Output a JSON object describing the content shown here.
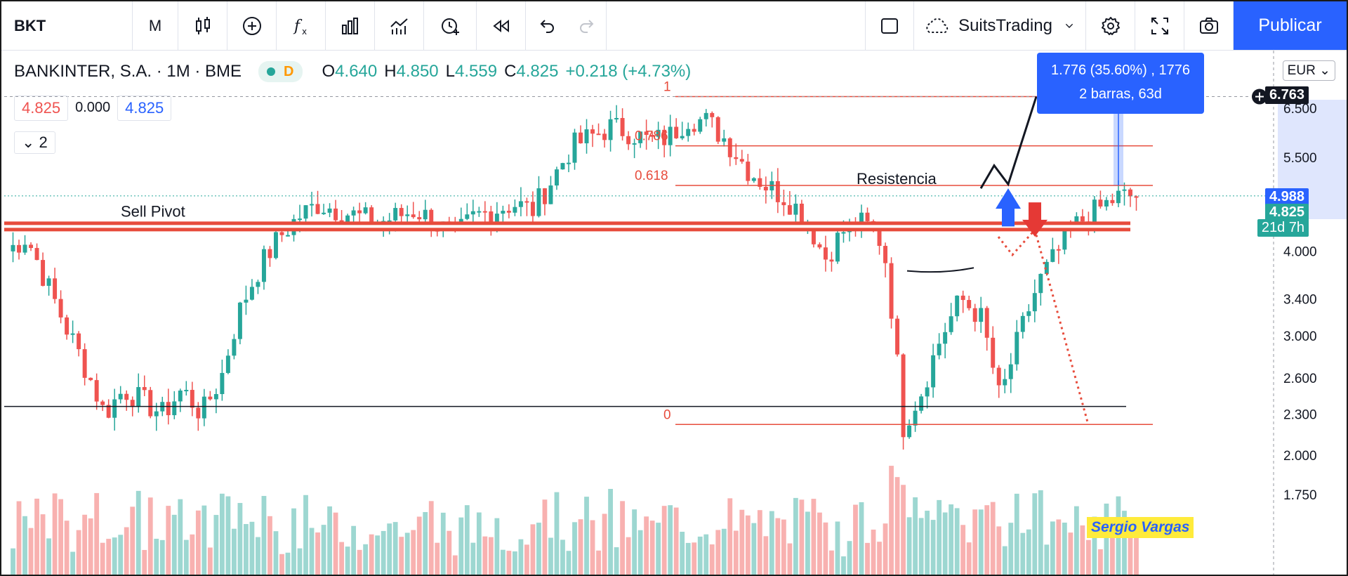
{
  "toolbar": {
    "symbol": "BKT",
    "interval": "M",
    "brand": "SuitsTrading",
    "publish_label": "Publicar",
    "icons": [
      "candles-icon",
      "add-icon",
      "fx-icon",
      "bars-icon",
      "indicator-icon",
      "alert-icon",
      "replay-icon",
      "undo-icon",
      "redo-icon",
      "layout-icon",
      "cloud-icon",
      "gear-icon",
      "fullscreen-icon",
      "camera-icon"
    ]
  },
  "legend": {
    "title": "BANKINTER, S.A. · 1M · BME",
    "badge": "D",
    "o_label": "O",
    "o": "4.640",
    "h_label": "H",
    "h": "4.850",
    "l_label": "L",
    "l": "4.559",
    "c_label": "C",
    "c": "4.825",
    "change": "+0.218 (+4.73%)",
    "box1": "4.825",
    "box2": "0.000",
    "box3": "4.825",
    "collapse": "2"
  },
  "price_tags": {
    "currency": "EUR",
    "crosshair": "6.763",
    "target": "4.988",
    "last": "4.825",
    "countdown": "21d 7h"
  },
  "info": {
    "line1": "1.776 (35.60%) , 1776",
    "line2": "2 barras, 63d"
  },
  "author": "Sergio Vargas",
  "colors": {
    "up": "#26a69a",
    "down": "#ef5350",
    "accent": "#2962ff",
    "level": "#e74c3c"
  },
  "chart_data": {
    "type": "candlestick",
    "title": "BANKINTER, S.A. · 1M · BME",
    "y_scale": "log",
    "ylim": [
      1.6,
      7.6
    ],
    "y_ticks": [
      1.75,
      2.0,
      2.3,
      2.6,
      3.0,
      3.4,
      4.0,
      5.5,
      6.5
    ],
    "y_tick_labels": [
      "1.750",
      "2.000",
      "2.300",
      "2.600",
      "3.000",
      "3.400",
      "4.000",
      "5.500",
      "6.500"
    ],
    "annotations": {
      "sell_pivot": {
        "label": "Sell Pivot",
        "price": 4.35
      },
      "resistencia": {
        "label": "Resistencia",
        "price": 5.0
      },
      "support": {
        "price": 2.36
      },
      "fib_levels": [
        {
          "label": "0.618",
          "value": 5.0
        },
        {
          "label": "0.786",
          "value": 5.72
        },
        {
          "label": "1",
          "value": 6.76
        },
        {
          "label": "0",
          "value": 2.22
        }
      ]
    },
    "series_outline": [
      4.0,
      4.2,
      3.6,
      3.1,
      2.7,
      2.3,
      2.5,
      2.4,
      2.3,
      2.5,
      2.3,
      2.6,
      3.3,
      3.8,
      4.2,
      4.5,
      4.7,
      4.6,
      4.5,
      4.4,
      4.5,
      4.6,
      4.4,
      4.2,
      4.5,
      4.6,
      4.7,
      4.6,
      5.1,
      5.7,
      5.9,
      6.1,
      6.0,
      5.8,
      5.9,
      6.3,
      6.2,
      5.8,
      5.3,
      5.0,
      4.8,
      4.5,
      3.9,
      4.3,
      4.4,
      4.1,
      2.2,
      2.5,
      3.0,
      3.4,
      3.2,
      2.4,
      3.0,
      3.6,
      4.0,
      4.4,
      4.6,
      4.8,
      4.825
    ]
  }
}
